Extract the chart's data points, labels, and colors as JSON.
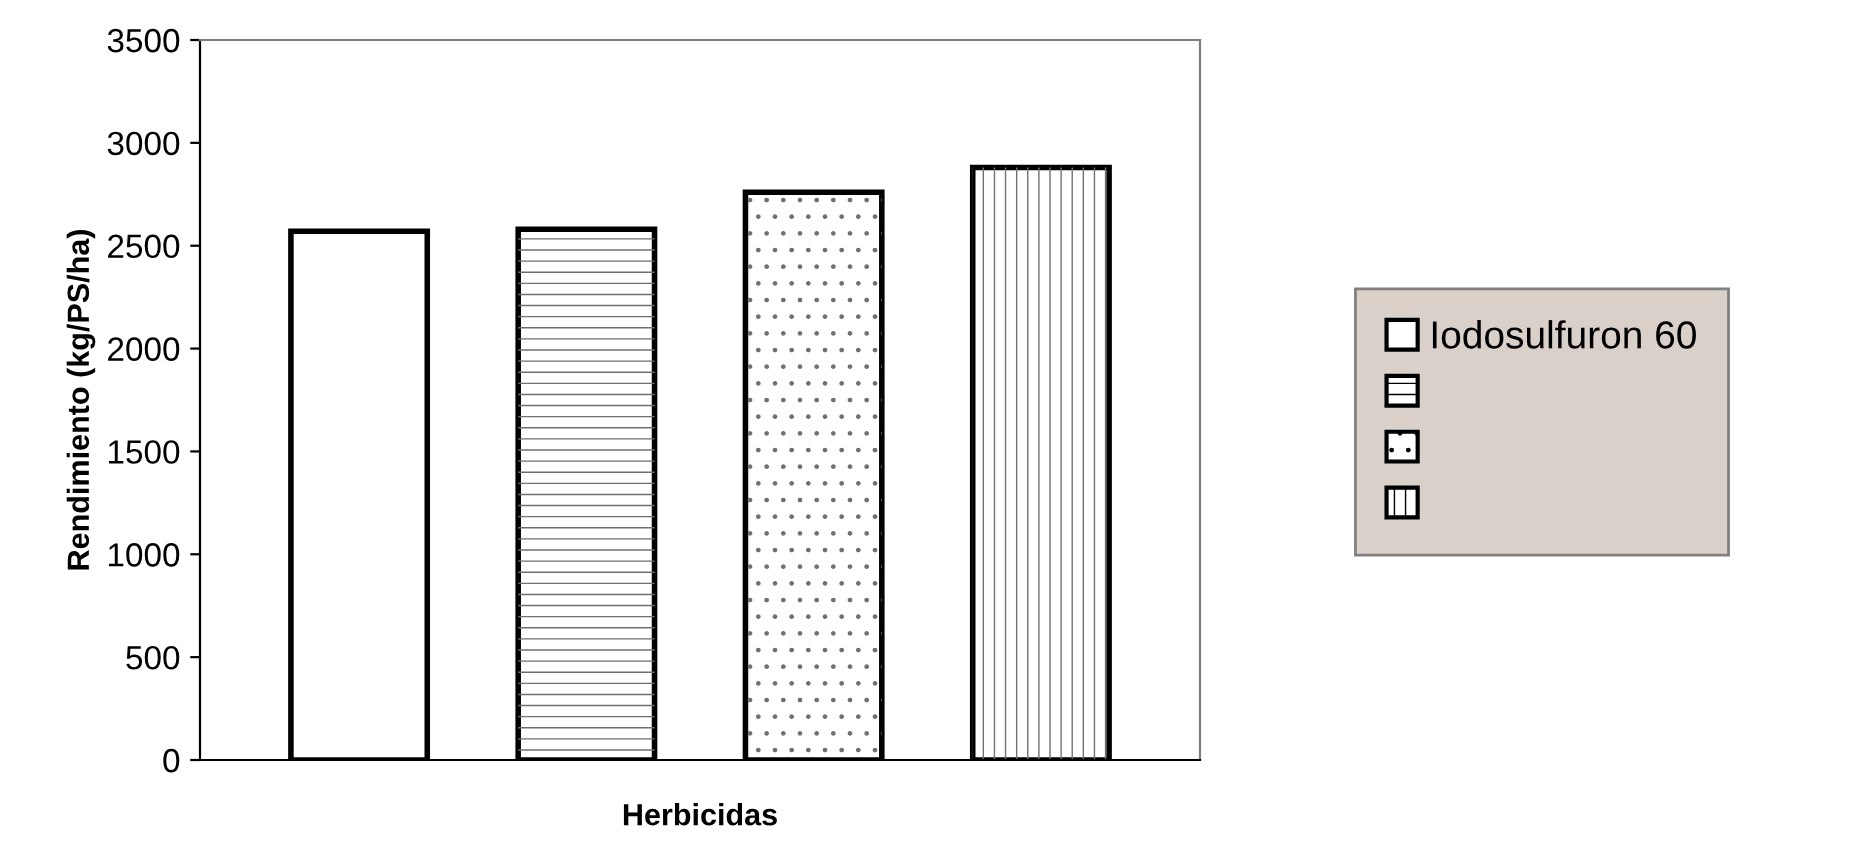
{
  "chart_data": {
    "type": "bar",
    "xlabel": "Herbicidas",
    "ylabel": "Rendimiento (kg/PS/ha)",
    "categories": [
      null
    ],
    "series": [
      {
        "name": "Iodosulfuron 60",
        "color": "#ffffff",
        "values": [
          2570
        ]
      },
      {
        "color": "#ffffff",
        "values": [
          2580
        ]
      },
      {
        "color": "#ffffff",
        "values": [
          2760
        ]
      },
      {
        "color": "#ffffff",
        "values": [
          2880
        ]
      }
    ],
    "ylim": [
      0,
      3500
    ],
    "yticks": [
      0,
      500,
      1000,
      1500,
      2000,
      2500,
      3000,
      3500
    ],
    "grid": false,
    "legend": "right"
  }
}
